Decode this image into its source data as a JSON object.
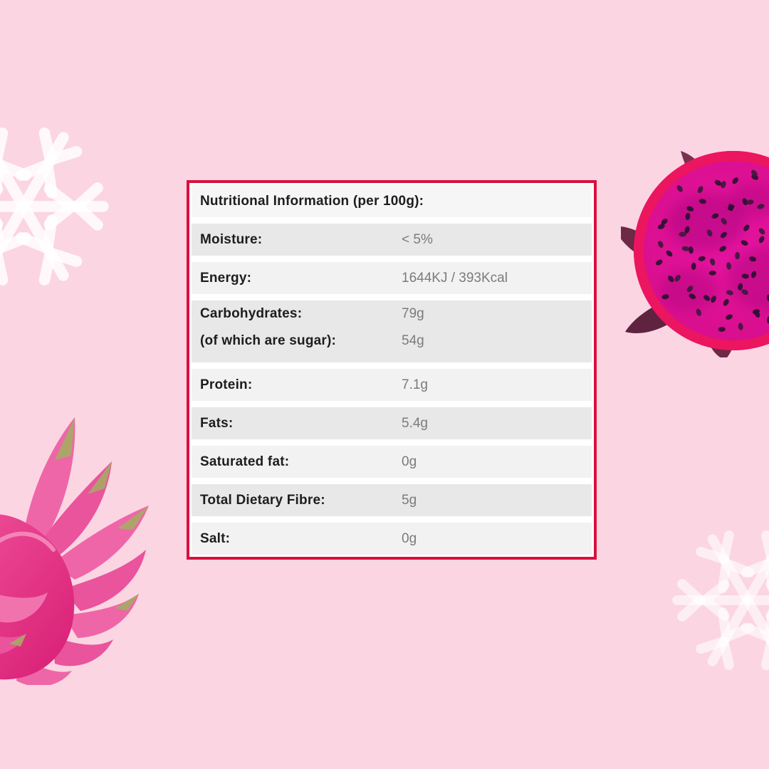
{
  "page": {
    "background_color": "#fbd5e2",
    "accent_color": "#d8103f"
  },
  "nutrition_table": {
    "border_color": "#d8103f",
    "title": "Nutritional Information (per 100g):",
    "rows": [
      {
        "label": "Moisture:",
        "value": "< 5%"
      },
      {
        "label": "Energy:",
        "value": "1644KJ / 393Kcal"
      },
      {
        "label": "Carbohydrates:",
        "value": "79g"
      },
      {
        "label": "(of which are sugar):",
        "value": "54g"
      },
      {
        "label": "Protein:",
        "value": "7.1g"
      },
      {
        "label": "Fats:",
        "value": "5.4g"
      },
      {
        "label": "Saturated fat:",
        "value": "0g"
      },
      {
        "label": "Total Dietary Fibre:",
        "value": "5g"
      },
      {
        "label": "Salt:",
        "value": "0g"
      }
    ]
  },
  "decorations": {
    "snowflake_top_left": "snowflake-icon",
    "snowflake_bottom_right": "snowflake-icon",
    "dragon_fruit_half": "dragon-fruit-half-image",
    "dragon_fruit_whole": "dragon-fruit-whole-image",
    "flesh_color": "#de1094",
    "rim_color": "#ec155f",
    "seed_color": "#2b1130",
    "leaf_color": "#6d2946",
    "fruit_body_pink": "#e9348a",
    "fin_tip_olive": "#a9a866"
  }
}
